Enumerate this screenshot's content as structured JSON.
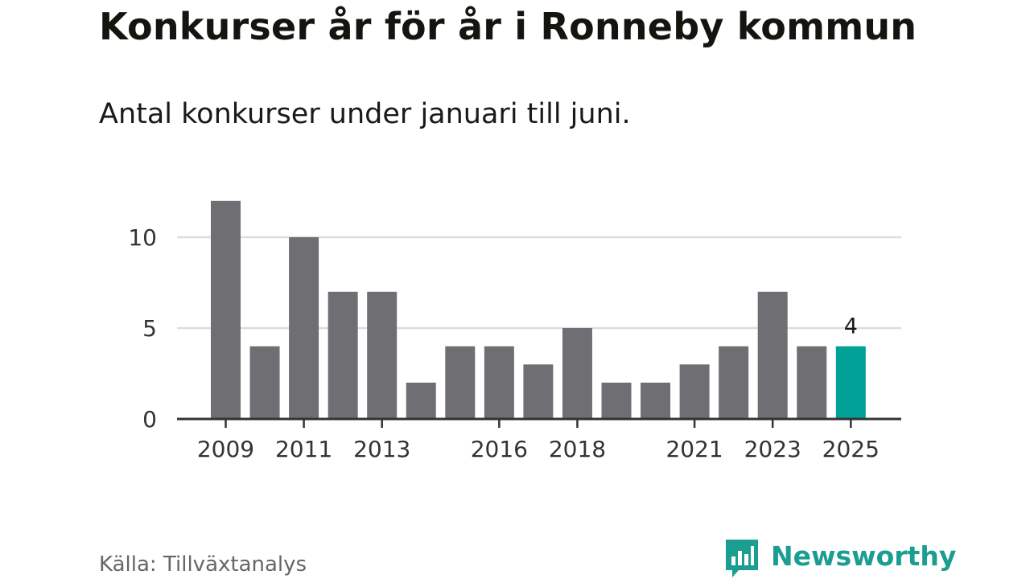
{
  "header": {
    "title": "Konkurser år för år i Ronneby kommun",
    "subtitle": "Antal konkurser under januari till juni."
  },
  "footer": {
    "source": "Källa: Tillväxtanalys",
    "brand": "Newsworthy"
  },
  "colors": {
    "bar": "#6f6e73",
    "highlight": "#00a298",
    "grid": "#dddddd",
    "axis": "#333333",
    "brand": "#1b9d92"
  },
  "chart_data": {
    "type": "bar",
    "categories": [
      "2009",
      "2010",
      "2011",
      "2012",
      "2013",
      "2014",
      "2015",
      "2016",
      "2017",
      "2018",
      "2019",
      "2020",
      "2021",
      "2022",
      "2023",
      "2024",
      "2025"
    ],
    "values": [
      12,
      4,
      10,
      7,
      7,
      2,
      4,
      4,
      3,
      5,
      2,
      2,
      3,
      4,
      7,
      4,
      4
    ],
    "x_tick_labels": [
      "2009",
      "2011",
      "2013",
      "2016",
      "2018",
      "2021",
      "2023",
      "2025"
    ],
    "y_ticks": [
      0,
      5,
      10
    ],
    "ylim": [
      0,
      12
    ],
    "highlight_category": "2025",
    "data_labels": [
      {
        "category": "2025",
        "text": "4"
      }
    ],
    "title": "Konkurser år för år i Ronneby kommun",
    "subtitle": "Antal konkurser under januari till juni.",
    "xlabel": "",
    "ylabel": "",
    "grid": true,
    "legend": "none"
  }
}
